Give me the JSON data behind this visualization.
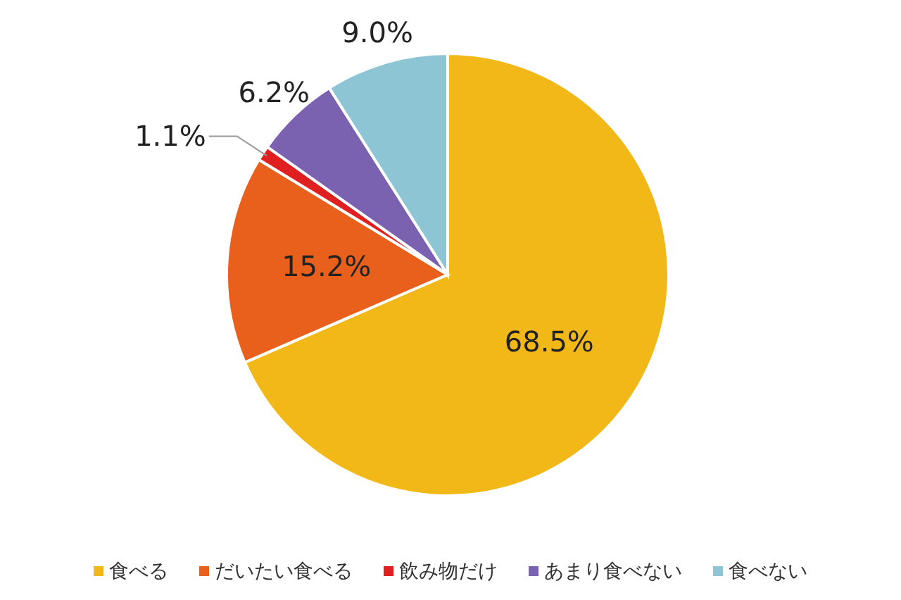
{
  "chart_data": {
    "type": "pie",
    "categories": [
      "食べる",
      "だいたい食べる",
      "飲み物だけ",
      "あまり食べない",
      "食べない"
    ],
    "values": [
      68.5,
      15.2,
      1.1,
      6.2,
      9.0
    ],
    "colors": [
      "#f2b817",
      "#e8601c",
      "#e02020",
      "#7b62b0",
      "#8dc5d5"
    ],
    "value_labels": [
      "68.5%",
      "15.2%",
      "1.1%",
      "6.2%",
      "9.0%"
    ],
    "legend": "bottom"
  }
}
